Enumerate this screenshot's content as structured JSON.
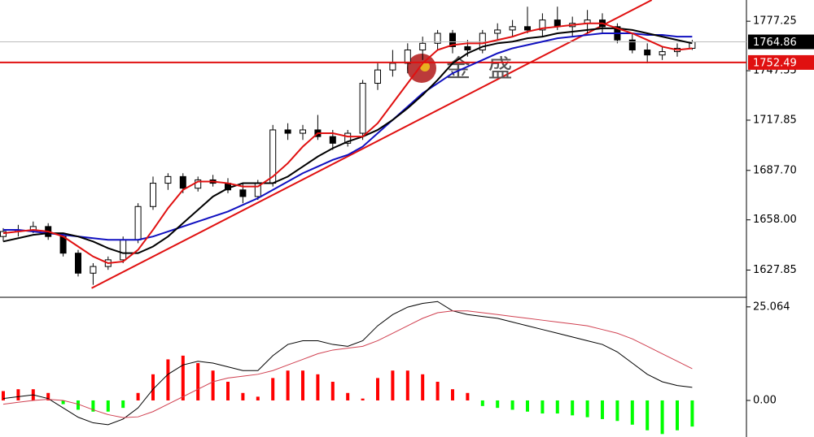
{
  "chart_data": [
    {
      "type": "candlestick",
      "open": [
        1648,
        1651,
        1652,
        1654,
        1648,
        1638,
        1626,
        1630,
        1634,
        1646,
        1666,
        1680,
        1684,
        1677,
        1682,
        1680,
        1676,
        1672,
        1680,
        1712,
        1710,
        1712,
        1708,
        1704,
        1710,
        1740,
        1748,
        1752,
        1760,
        1764,
        1770,
        1762,
        1760,
        1770,
        1772,
        1774,
        1772,
        1778,
        1774,
        1776,
        1778,
        1774,
        1766,
        1760,
        1757,
        1759,
        1761
      ],
      "high": [
        1653,
        1655,
        1657,
        1656,
        1650,
        1640,
        1632,
        1636,
        1648,
        1668,
        1684,
        1686,
        1686,
        1684,
        1685,
        1683,
        1680,
        1682,
        1715,
        1716,
        1715,
        1721,
        1712,
        1712,
        1742,
        1752,
        1760,
        1764,
        1768,
        1772,
        1772,
        1766,
        1772,
        1776,
        1778,
        1786,
        1782,
        1786,
        1780,
        1784,
        1782,
        1776,
        1770,
        1764,
        1762,
        1764,
        1766
      ],
      "low": [
        1645,
        1648,
        1650,
        1646,
        1636,
        1624,
        1619,
        1628,
        1632,
        1644,
        1664,
        1676,
        1674,
        1675,
        1678,
        1674,
        1668,
        1670,
        1678,
        1706,
        1706,
        1706,
        1700,
        1702,
        1706,
        1736,
        1744,
        1746,
        1754,
        1760,
        1758,
        1756,
        1758,
        1766,
        1768,
        1770,
        1768,
        1772,
        1768,
        1770,
        1770,
        1764,
        1758,
        1752,
        1754,
        1756,
        1760
      ],
      "close": [
        1651,
        1652,
        1654,
        1648,
        1638,
        1626,
        1630,
        1634,
        1646,
        1666,
        1680,
        1684,
        1677,
        1682,
        1680,
        1676,
        1672,
        1680,
        1712,
        1710,
        1712,
        1708,
        1704,
        1710,
        1740,
        1748,
        1752,
        1760,
        1764,
        1770,
        1762,
        1760,
        1770,
        1772,
        1774,
        1772,
        1778,
        1774,
        1776,
        1778,
        1774,
        1766,
        1760,
        1757,
        1759,
        1761,
        1764.86
      ],
      "series": [
        {
          "color": "#1010c0",
          "values": [
            1652,
            1652,
            1651,
            1650,
            1649,
            1648,
            1647,
            1646,
            1646,
            1646,
            1648,
            1651,
            1654,
            1657,
            1660,
            1663,
            1667,
            1671,
            1676,
            1681,
            1686,
            1690,
            1694,
            1697,
            1702,
            1710,
            1718,
            1726,
            1734,
            1740,
            1746,
            1750,
            1754,
            1758,
            1761,
            1763,
            1765,
            1767,
            1768,
            1769,
            1770,
            1770,
            1770,
            1769,
            1769,
            1768,
            1768
          ]
        },
        {
          "color": "#000000",
          "values": [
            1645,
            1647,
            1649,
            1650,
            1650,
            1648,
            1645,
            1641,
            1638,
            1638,
            1642,
            1648,
            1656,
            1664,
            1672,
            1677,
            1680,
            1680,
            1680,
            1684,
            1690,
            1696,
            1701,
            1705,
            1708,
            1712,
            1718,
            1725,
            1733,
            1742,
            1752,
            1758,
            1762,
            1764,
            1765,
            1767,
            1768,
            1770,
            1771,
            1772,
            1773,
            1773,
            1772,
            1770,
            1768,
            1766,
            1764
          ]
        },
        {
          "color": "#e01010",
          "values": [
            1650,
            1651,
            1652,
            1651,
            1648,
            1642,
            1636,
            1632,
            1633,
            1640,
            1652,
            1665,
            1676,
            1681,
            1681,
            1680,
            1678,
            1678,
            1684,
            1692,
            1702,
            1710,
            1710,
            1708,
            1708,
            1716,
            1728,
            1740,
            1752,
            1760,
            1763,
            1764,
            1764,
            1766,
            1768,
            1771,
            1773,
            1774,
            1775,
            1776,
            1776,
            1773,
            1770,
            1766,
            1762,
            1760,
            1761
          ]
        }
      ],
      "trendline": {
        "from": [
          5.9,
          1617
        ],
        "to": [
          43.3,
          1790
        ],
        "color": "#e01010"
      },
      "current_price": {
        "value": 1764.86,
        "label": "1764.86"
      },
      "level_line": {
        "value": 1752.49,
        "label": "1752.49",
        "color": "#e01010"
      },
      "watermark": "金 盛",
      "ylim": [
        1612,
        1790
      ],
      "yticks": [
        1627.85,
        {
          "value": 1658,
          "label": "1658.00"
        },
        {
          "value": 1687.7,
          "label": "1687.70"
        },
        1717.85,
        1747.55,
        1777.25
      ]
    },
    {
      "type": "macd",
      "histogram": [
        2.5,
        3,
        3,
        2,
        -1,
        -2.5,
        -3,
        -3,
        -2,
        2,
        7,
        11,
        12,
        10,
        8,
        5,
        2,
        1,
        6,
        8,
        8,
        7,
        5,
        2,
        0.5,
        6,
        8,
        8,
        7,
        5,
        3,
        2,
        -1.5,
        -2,
        -2.5,
        -3,
        -3.5,
        -3.5,
        -4,
        -4.5,
        -5,
        -5.5,
        -6.5,
        -8,
        -9,
        -8,
        -7
      ],
      "positive_color": "#ff0000",
      "negative_color": "#00ff00",
      "series": [
        {
          "color": "#000000",
          "values": [
            0.5,
            1,
            1.5,
            0.5,
            -2,
            -4.5,
            -6,
            -6.5,
            -5,
            -2,
            3,
            7,
            9.5,
            10.5,
            10,
            9,
            8,
            8,
            12,
            15,
            16,
            16,
            15,
            14.5,
            16,
            20,
            23,
            25,
            26,
            26.5,
            24,
            23,
            22.5,
            22,
            21,
            20,
            19,
            18,
            17,
            16,
            15,
            13,
            10,
            7,
            5,
            4,
            3.5
          ]
        },
        {
          "color": "#d04050",
          "values": [
            -1,
            -0.5,
            0,
            0.3,
            0,
            -1,
            -2.5,
            -3.8,
            -4.6,
            -4.4,
            -3,
            -1,
            1,
            3,
            5,
            6,
            6.5,
            7,
            8,
            9.5,
            11,
            12.5,
            13.5,
            14,
            14.5,
            16,
            18,
            20,
            22,
            23.5,
            24,
            24,
            23.5,
            23,
            22.5,
            22,
            21.5,
            21,
            20.5,
            20,
            19,
            18,
            16.5,
            14.5,
            12.5,
            10.5,
            8.5
          ]
        }
      ],
      "ylim": [
        -9.8,
        27.2
      ],
      "yticks": [
        {
          "value": 0,
          "label": "0.00"
        },
        25.064
      ]
    }
  ]
}
